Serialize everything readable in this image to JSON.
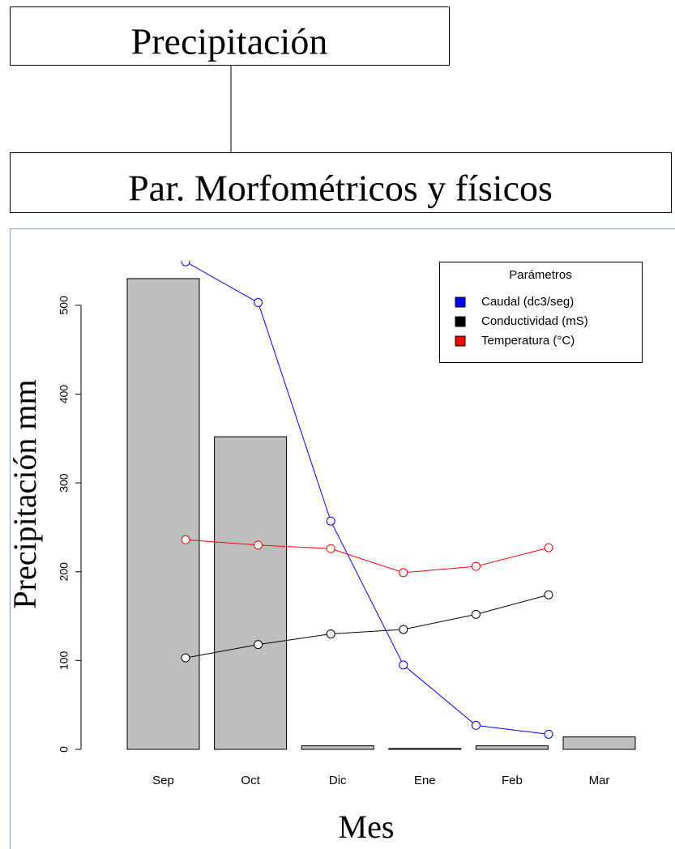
{
  "diagram": {
    "nodes": [
      {
        "label": "Precipitación"
      },
      {
        "label": "Par. Morfométricos y físicos"
      }
    ]
  },
  "chart_data": {
    "type": "bar",
    "y_label": "Precipitación mm",
    "x_label": "Mes",
    "categories": [
      "Sep",
      "Oct",
      "Dic",
      "Ene",
      "Feb",
      "Mar"
    ],
    "values": [
      530,
      352,
      4,
      1,
      4,
      14
    ],
    "color": "#bebebe",
    "ylim": [
      0,
      550
    ],
    "yticks": [
      0,
      100,
      200,
      300,
      400,
      500
    ],
    "legend_title": "Parámetros",
    "legend": "top-right",
    "series": [
      {
        "name": "Caudal (dc3/seg)",
        "color": "#0000ff",
        "values": [
          549,
          503,
          257,
          95,
          27,
          17
        ]
      },
      {
        "name": "Conductividad (mS)",
        "color": "#000000",
        "values": [
          103,
          118,
          130,
          135,
          152,
          174
        ]
      },
      {
        "name": "Temperatura (°C)",
        "color": "#ff0000",
        "values": [
          236,
          230,
          226,
          199,
          206,
          227
        ]
      }
    ]
  }
}
